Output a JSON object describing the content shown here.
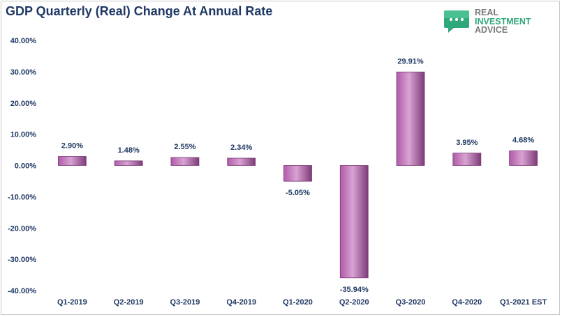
{
  "chart_data": {
    "type": "bar",
    "title": "GDP Quarterly (Real) Change At Annual Rate",
    "categories": [
      "Q1-2019",
      "Q2-2019",
      "Q3-2019",
      "Q4-2019",
      "Q1-2020",
      "Q2-2020",
      "Q3-2020",
      "Q4-2020",
      "Q1-2021 EST"
    ],
    "values": [
      2.9,
      1.48,
      2.55,
      2.34,
      -5.05,
      -35.94,
      29.91,
      3.95,
      4.68
    ],
    "data_labels": [
      "2.90%",
      "1.48%",
      "2.55%",
      "2.34%",
      "-5.05%",
      "-35.94%",
      "29.91%",
      "3.95%",
      "4.68%"
    ],
    "yticks": [
      40,
      30,
      20,
      10,
      0,
      -10,
      -20,
      -30,
      -40
    ],
    "ytick_labels": [
      "40.00%",
      "30.00%",
      "20.00%",
      "10.00%",
      "0.00%",
      "-10.00%",
      "-20.00%",
      "-30.00%",
      "-40.00%"
    ],
    "ylim": [
      -40,
      40
    ],
    "grid": false,
    "legend": "none",
    "bar_color": "#b05aa8",
    "bar_color_light": "#d9a3d3",
    "bar_color_dark": "#7d3a78"
  },
  "logo": {
    "line1": "REAL",
    "line2": "INVESTMENT",
    "line3": "ADVICE",
    "icon": "chat-bubble-icon",
    "color": "#2fa87a"
  }
}
